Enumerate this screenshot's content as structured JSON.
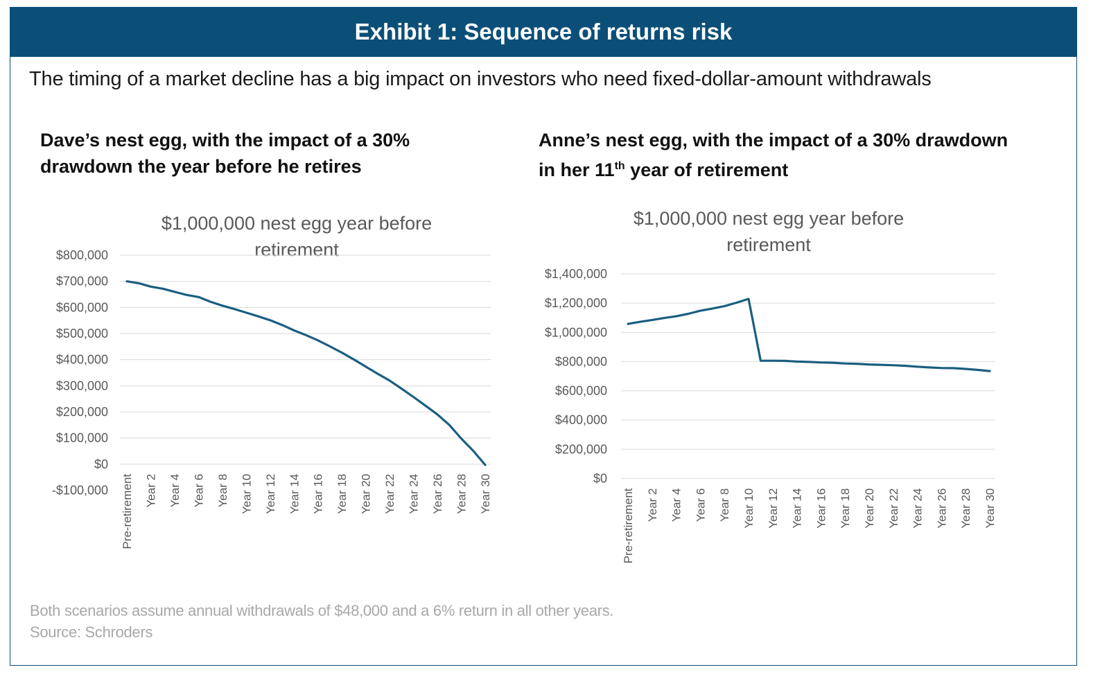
{
  "header": {
    "title": "Exhibit 1: Sequence of returns risk",
    "subtitle": "The timing of a market decline has a big impact on investors who need fixed-dollar-amount withdrawals"
  },
  "panels": [
    {
      "heading_line1": "Dave’s nest egg, with the impact of a 30%",
      "heading_line2": "drawdown the year before he retires"
    },
    {
      "heading_line1": "Anne’s nest egg, with the impact of a 30% drawdown",
      "heading_line2_pre": "in her 11",
      "heading_line2_sup": "th",
      "heading_line2_post": " year of retirement"
    }
  ],
  "footer": {
    "note": "Both scenarios assume annual withdrawals of $48,000 and a 6% return in all other years.",
    "source": "Source: Schroders"
  },
  "chart_data": [
    {
      "type": "line",
      "title": "$1,000,000 nest egg year before retirement",
      "title_lines": [
        "$1,000,000 nest egg year before",
        "retirement"
      ],
      "xlabel": "",
      "ylabel": "",
      "ylim": [
        -100000,
        800000
      ],
      "y_ticks": [
        800000,
        700000,
        600000,
        500000,
        400000,
        300000,
        200000,
        100000,
        0,
        -100000
      ],
      "y_tick_labels": [
        "$800,000",
        "$700,000",
        "$600,000",
        "$500,000",
        "$400,000",
        "$300,000",
        "$200,000",
        "$100,000",
        "$0",
        "-$100,000"
      ],
      "grid": true,
      "color": "#1a5e80",
      "x": [
        "Pre-retirement",
        "Year 1",
        "Year 2",
        "Year 3",
        "Year 4",
        "Year 5",
        "Year 6",
        "Year 7",
        "Year 8",
        "Year 9",
        "Year 10",
        "Year 11",
        "Year 12",
        "Year 13",
        "Year 14",
        "Year 15",
        "Year 16",
        "Year 17",
        "Year 18",
        "Year 19",
        "Year 20",
        "Year 21",
        "Year 22",
        "Year 23",
        "Year 24",
        "Year 25",
        "Year 26",
        "Year 27",
        "Year 28",
        "Year 29",
        "Year 30"
      ],
      "x_tick_labels": [
        "Pre-retirement",
        "Year 2",
        "Year 4",
        "Year 6",
        "Year 8",
        "Year 10",
        "Year 12",
        "Year 14",
        "Year 16",
        "Year 18",
        "Year 20",
        "Year 22",
        "Year 24",
        "Year 26",
        "Year 28",
        "Year 30"
      ],
      "values": [
        700000,
        693000,
        680000,
        672000,
        660000,
        648000,
        640000,
        622000,
        607000,
        594000,
        580000,
        566000,
        551000,
        533000,
        512000,
        494000,
        474000,
        451000,
        427000,
        401000,
        373000,
        346000,
        320000,
        289000,
        257000,
        224000,
        190000,
        150000,
        98000,
        51000,
        -3000
      ]
    },
    {
      "type": "line",
      "title": "$1,000,000 nest egg year before retirement",
      "title_lines": [
        "$1,000,000 nest egg year before",
        "retirement"
      ],
      "xlabel": "",
      "ylabel": "",
      "ylim": [
        0,
        1400000
      ],
      "y_ticks": [
        1400000,
        1200000,
        1000000,
        800000,
        600000,
        400000,
        200000,
        0
      ],
      "y_tick_labels": [
        "$1,400,000",
        "$1,200,000",
        "$1,000,000",
        "$800,000",
        "$600,000",
        "$400,000",
        "$200,000",
        "$0"
      ],
      "grid": true,
      "color": "#1a5e80",
      "x": [
        "Pre-retirement",
        "Year 1",
        "Year 2",
        "Year 3",
        "Year 4",
        "Year 5",
        "Year 6",
        "Year 7",
        "Year 8",
        "Year 9",
        "Year 10",
        "Year 11",
        "Year 12",
        "Year 13",
        "Year 14",
        "Year 15",
        "Year 16",
        "Year 17",
        "Year 18",
        "Year 19",
        "Year 20",
        "Year 21",
        "Year 22",
        "Year 23",
        "Year 24",
        "Year 25",
        "Year 26",
        "Year 27",
        "Year 28",
        "Year 29",
        "Year 30"
      ],
      "x_tick_labels": [
        "Pre-retirement",
        "Year 2",
        "Year 4",
        "Year 6",
        "Year 8",
        "Year 10",
        "Year 12",
        "Year 14",
        "Year 16",
        "Year 18",
        "Year 20",
        "Year 22",
        "Year 24",
        "Year 26",
        "Year 28",
        "Year 30"
      ],
      "values": [
        1058000,
        1072000,
        1085000,
        1098000,
        1110000,
        1127000,
        1148000,
        1163000,
        1180000,
        1203000,
        1229000,
        806000,
        806000,
        805000,
        800000,
        798000,
        794000,
        792000,
        787000,
        785000,
        780000,
        778000,
        775000,
        771000,
        765000,
        760000,
        756000,
        755000,
        750000,
        743000,
        735000
      ]
    }
  ]
}
